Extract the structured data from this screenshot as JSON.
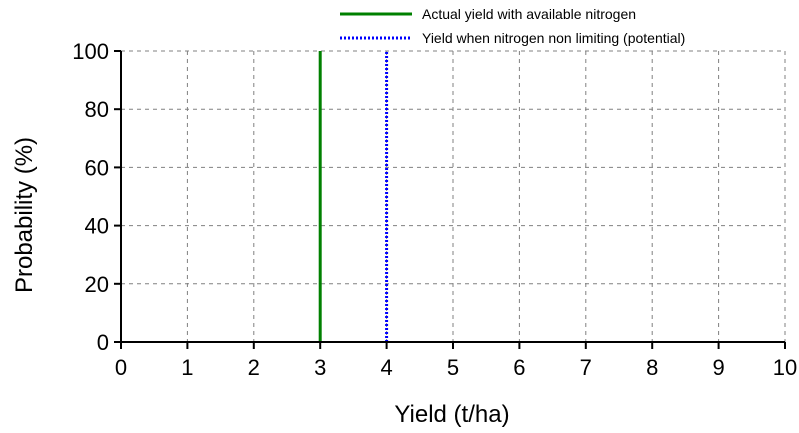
{
  "chart_data": {
    "type": "line",
    "title": "",
    "xlabel": "Yield (t/ha)",
    "ylabel": "Probability (%)",
    "xlim": [
      0,
      10
    ],
    "ylim": [
      0,
      100
    ],
    "x_ticks": [
      0,
      1,
      2,
      3,
      4,
      5,
      6,
      7,
      8,
      9,
      10
    ],
    "y_ticks": [
      0,
      20,
      40,
      60,
      80,
      100
    ],
    "grid": true,
    "legend_position": "top-right",
    "series": [
      {
        "name": "Actual yield with available nitrogen",
        "color": "#008000",
        "style": "solid",
        "x": [
          3,
          3
        ],
        "y": [
          0,
          100
        ]
      },
      {
        "name": "Yield when nitrogen non limiting (potential)",
        "color": "#0000ff",
        "style": "dotted",
        "x": [
          4,
          4
        ],
        "y": [
          0,
          100
        ]
      }
    ]
  }
}
